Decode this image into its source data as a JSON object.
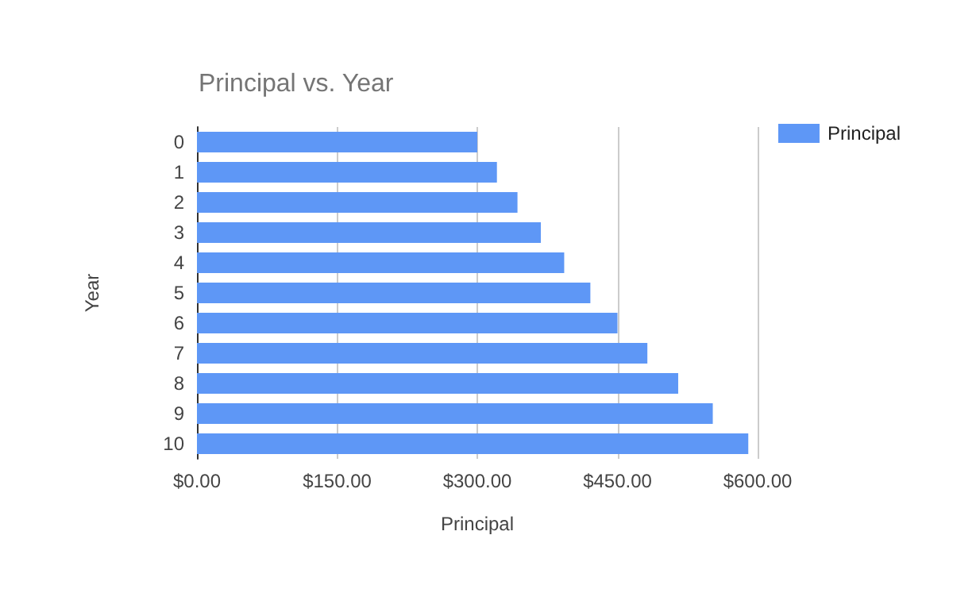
{
  "chart_data": {
    "type": "bar",
    "orientation": "horizontal",
    "title": "Principal vs. Year",
    "xlabel": "Principal",
    "ylabel": "Year",
    "categories": [
      "0",
      "1",
      "2",
      "3",
      "4",
      "5",
      "6",
      "7",
      "8",
      "9",
      "10"
    ],
    "series": [
      {
        "name": "Principal",
        "color": "#5e97f6",
        "values": [
          300,
          321,
          343,
          368,
          393,
          421,
          450,
          482,
          515,
          552,
          590
        ]
      }
    ],
    "xlim": [
      0,
      600
    ],
    "xticks": [
      {
        "value": 0,
        "label": "$0.00"
      },
      {
        "value": 150,
        "label": "$150.00"
      },
      {
        "value": 300,
        "label": "$300.00"
      },
      {
        "value": 450,
        "label": "$450.00"
      },
      {
        "value": 600,
        "label": "$600.00"
      }
    ],
    "grid": "x",
    "legend": "top right"
  }
}
